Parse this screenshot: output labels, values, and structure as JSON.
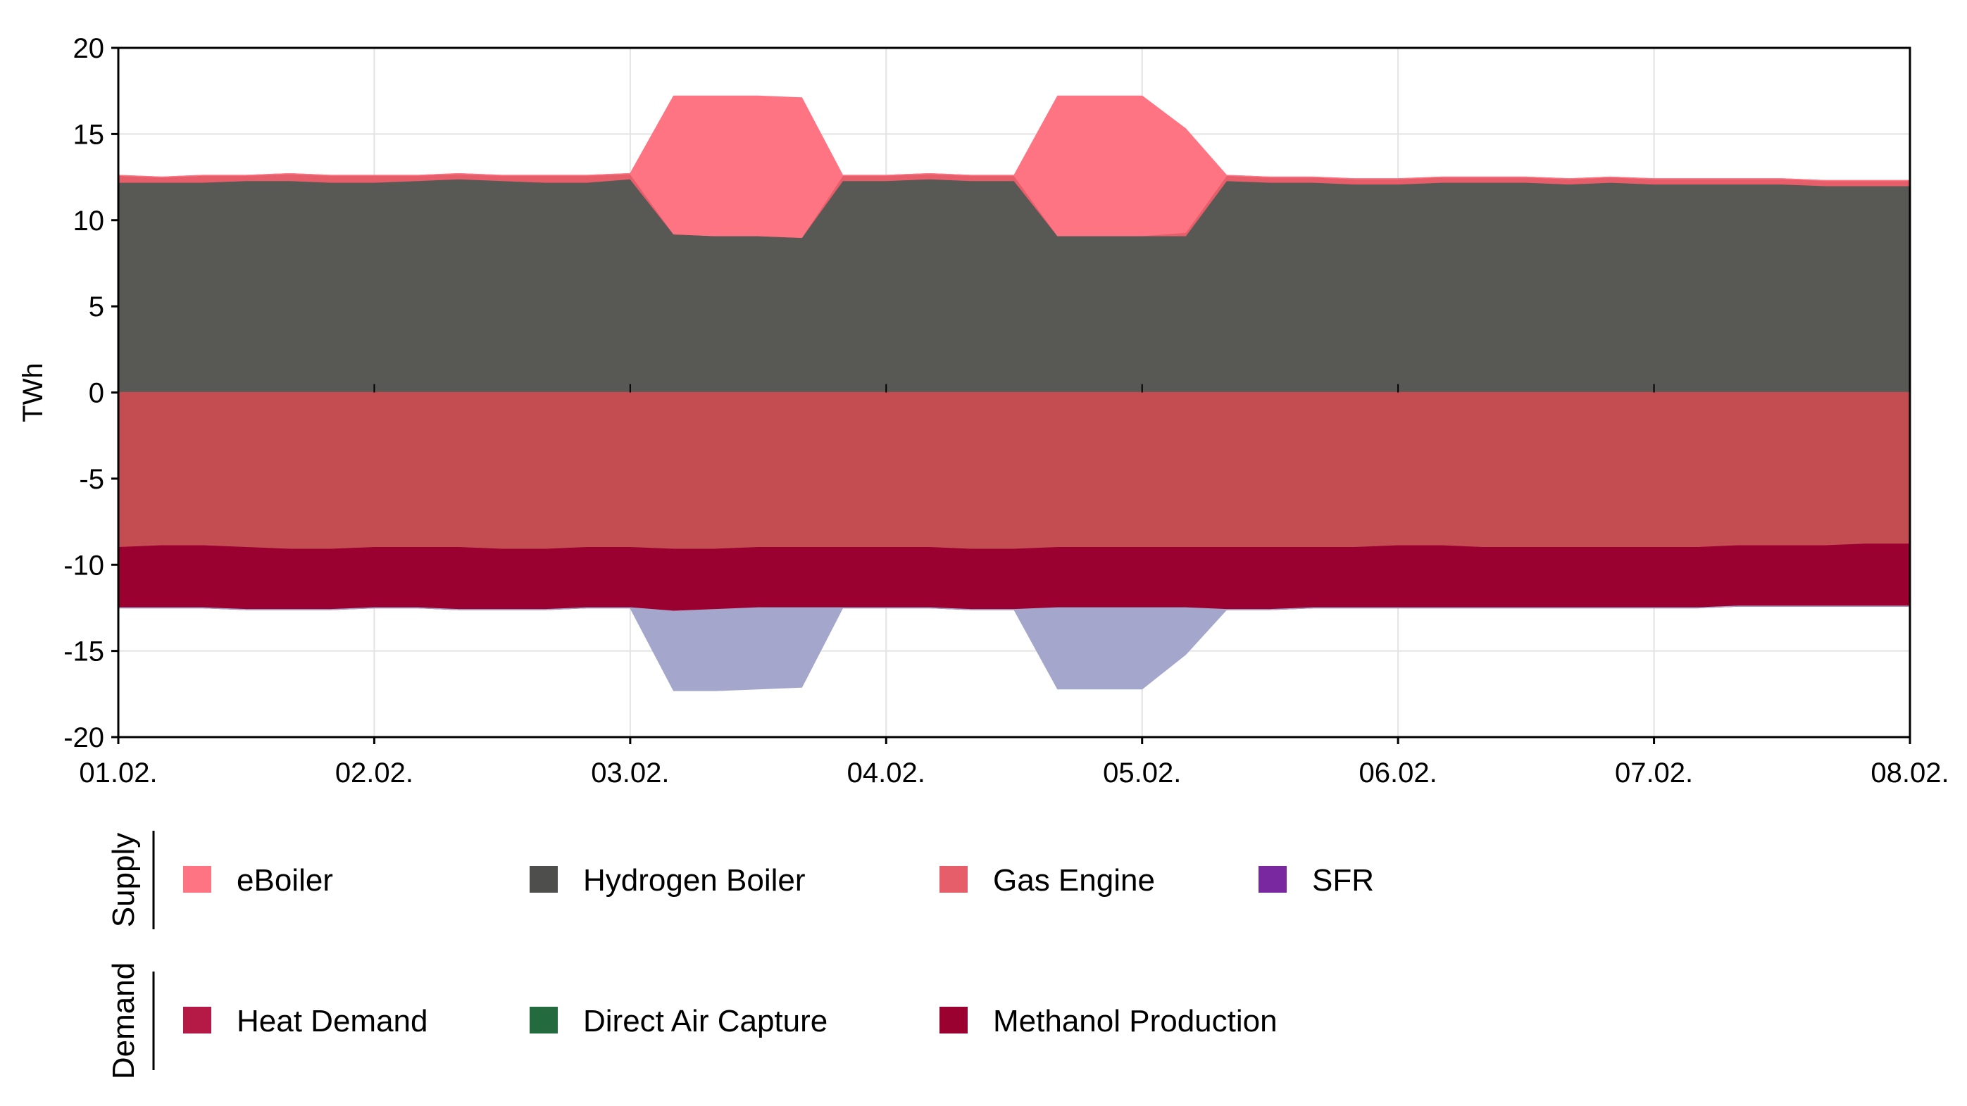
{
  "chart_data": {
    "type": "area",
    "ylabel": "TWh",
    "xlabel": "",
    "ylim": [
      -20,
      20
    ],
    "yticks": [
      20,
      15,
      10,
      5,
      0,
      -5,
      -10,
      -15,
      -20
    ],
    "ytick_labels": [
      "20",
      "15",
      "10",
      "5",
      "0",
      "-5",
      "-10",
      "-15",
      "-20"
    ],
    "xlim": [
      0,
      7
    ],
    "xtick_values": [
      0,
      1,
      2,
      3,
      4,
      5,
      6,
      7
    ],
    "xtick_labels": [
      "01.02.",
      "02.02.",
      "03.02.",
      "04.02.",
      "05.02.",
      "06.02.",
      "07.02.",
      "08.02."
    ],
    "grid": true,
    "x": [
      0,
      0.17,
      0.33,
      0.5,
      0.67,
      0.83,
      1,
      1.17,
      1.33,
      1.5,
      1.67,
      1.83,
      2,
      2.17,
      2.33,
      2.5,
      2.67,
      2.83,
      3,
      3.17,
      3.33,
      3.5,
      3.67,
      3.83,
      4,
      4.17,
      4.33,
      4.5,
      4.67,
      4.83,
      5,
      5.17,
      5.33,
      5.5,
      5.67,
      5.83,
      6,
      6.17,
      6.33,
      6.5,
      6.67,
      6.83,
      7
    ],
    "series": [
      {
        "name": "Hydrogen Boiler",
        "group": "supply",
        "color": "#585955",
        "values": [
          12.2,
          12.2,
          12.2,
          12.3,
          12.3,
          12.2,
          12.2,
          12.3,
          12.4,
          12.3,
          12.2,
          12.2,
          12.4,
          9.2,
          9.1,
          9.1,
          9.0,
          12.3,
          12.3,
          12.4,
          12.3,
          12.3,
          9.1,
          9.1,
          9.1,
          9.1,
          12.3,
          12.2,
          12.2,
          12.1,
          12.1,
          12.2,
          12.2,
          12.2,
          12.1,
          12.2,
          12.1,
          12.1,
          12.1,
          12.1,
          12.0,
          12.0,
          12.0
        ]
      },
      {
        "name": "Gas Engine",
        "group": "supply",
        "color": "#e75e6b",
        "values": [
          0.4,
          0.3,
          0.4,
          0.3,
          0.4,
          0.4,
          0.4,
          0.3,
          0.3,
          0.3,
          0.4,
          0.4,
          0.3,
          0,
          0,
          0,
          0,
          0.3,
          0.3,
          0.3,
          0.3,
          0.3,
          0,
          0,
          0,
          0.2,
          0.3,
          0.3,
          0.3,
          0.3,
          0.3,
          0.3,
          0.3,
          0.3,
          0.3,
          0.3,
          0.3,
          0.3,
          0.3,
          0.3,
          0.3,
          0.3,
          0.3
        ]
      },
      {
        "name": "eBoiler",
        "group": "supply",
        "color": "#ff7482",
        "values": [
          0,
          0,
          0,
          0,
          0,
          0,
          0,
          0,
          0,
          0,
          0,
          0,
          0,
          8.0,
          8.1,
          8.1,
          8.1,
          0,
          0,
          0,
          0,
          0,
          8.1,
          8.1,
          8.1,
          6.0,
          0,
          0,
          0,
          0,
          0,
          0,
          0,
          0,
          0,
          0,
          0,
          0,
          0,
          0,
          0,
          0,
          0
        ]
      },
      {
        "name": "Heat Demand",
        "group": "demand",
        "color": "#c44d51",
        "values": [
          -9.0,
          -8.9,
          -8.9,
          -9.0,
          -9.1,
          -9.1,
          -9.0,
          -9.0,
          -9.0,
          -9.1,
          -9.1,
          -9.0,
          -9.0,
          -9.1,
          -9.1,
          -9.0,
          -9.0,
          -9.0,
          -9.0,
          -9.0,
          -9.1,
          -9.1,
          -9.0,
          -9.0,
          -9.0,
          -9.0,
          -9.0,
          -9.0,
          -9.0,
          -9.0,
          -8.9,
          -8.9,
          -9.0,
          -9.0,
          -9.0,
          -9.0,
          -9.0,
          -9.0,
          -8.9,
          -8.9,
          -8.9,
          -8.8,
          -8.8
        ]
      },
      {
        "name": "Methanol Production",
        "group": "demand",
        "color": "#9b0130",
        "values": [
          -3.5,
          -3.6,
          -3.6,
          -3.6,
          -3.5,
          -3.5,
          -3.5,
          -3.5,
          -3.6,
          -3.5,
          -3.5,
          -3.5,
          -3.5,
          -3.6,
          -3.5,
          -3.5,
          -3.5,
          -3.5,
          -3.5,
          -3.5,
          -3.5,
          -3.5,
          -3.5,
          -3.5,
          -3.5,
          -3.5,
          -3.6,
          -3.6,
          -3.5,
          -3.5,
          -3.6,
          -3.6,
          -3.5,
          -3.5,
          -3.5,
          -3.5,
          -3.5,
          -3.5,
          -3.5,
          -3.5,
          -3.5,
          -3.6,
          -3.6
        ]
      },
      {
        "name": "SFR",
        "group": "demand",
        "color": "#a4a6cc",
        "values": [
          0,
          0,
          0,
          0,
          0,
          0,
          0,
          0,
          0,
          0,
          0,
          0,
          0,
          -4.6,
          -4.7,
          -4.7,
          -4.6,
          0,
          0,
          0,
          0,
          0,
          -4.7,
          -4.7,
          -4.7,
          -2.7,
          0,
          0,
          0,
          0,
          0,
          0,
          0,
          0,
          0,
          0,
          0,
          0,
          0,
          0,
          0,
          0,
          0
        ]
      }
    ],
    "legend": {
      "placement": "bottom",
      "groups": [
        {
          "label": "Supply",
          "items": [
            {
              "label": "eBoiler",
              "color": "#ff7482"
            },
            {
              "label": "Hydrogen Boiler",
              "color": "#4e4f4d"
            },
            {
              "label": "Gas Engine",
              "color": "#e75e6b"
            },
            {
              "label": "SFR",
              "color": "#7a28a0"
            }
          ]
        },
        {
          "label": "Demand",
          "items": [
            {
              "label": "Heat Demand",
              "color": "#b51a47"
            },
            {
              "label": "Direct Air Capture",
              "color": "#236a3e"
            },
            {
              "label": "Methanol Production",
              "color": "#9b0130"
            }
          ]
        }
      ]
    }
  }
}
